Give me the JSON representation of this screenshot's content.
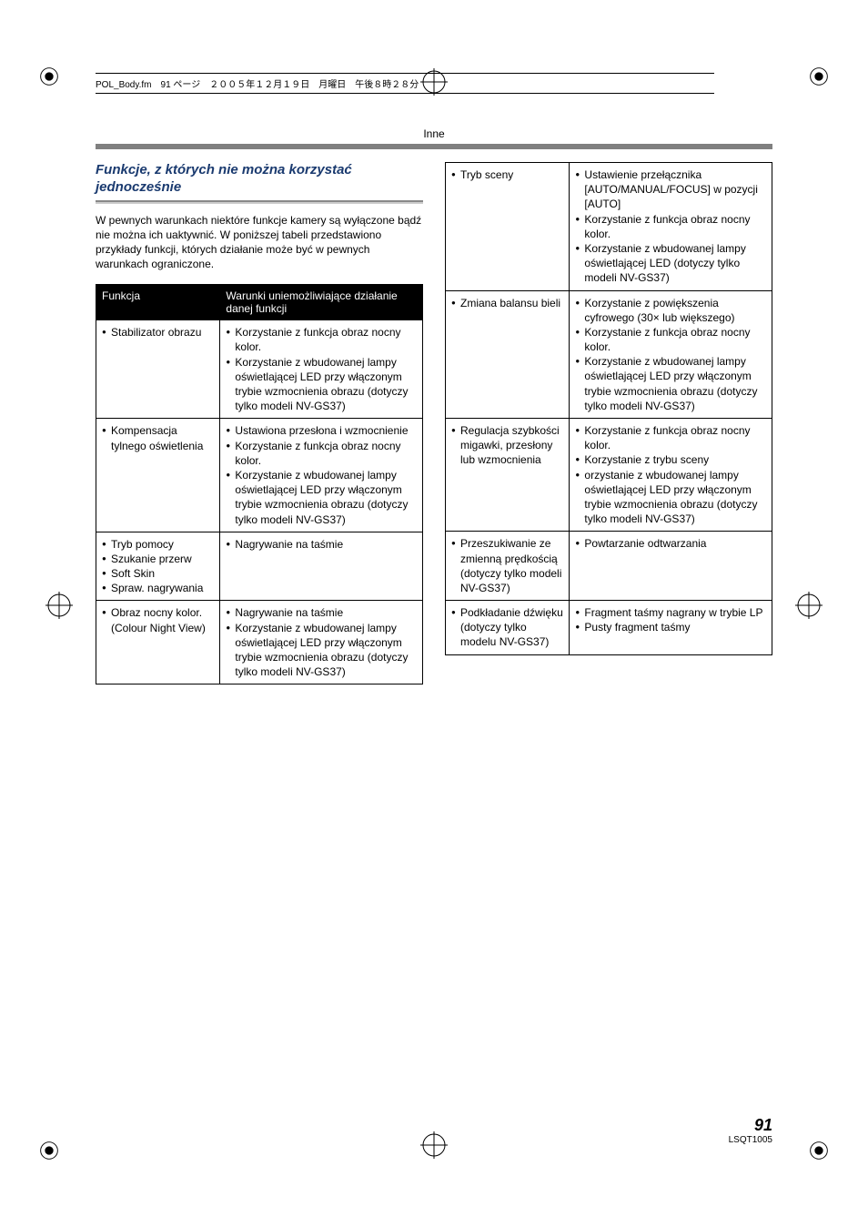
{
  "header_text": "POL_Body.fm　91 ページ　２００５年１２月１９日　月曜日　午後８時２８分",
  "section_label": "Inne",
  "title": "Funkcje, z których nie można korzystać jednocześnie",
  "intro": "W pewnych warunkach niektóre funkcje kamery są wyłączone bądź nie można ich uaktywnić. W poniższej tabeli przedstawiono przykłady funkcji, których działanie może być w pewnych warunkach ograniczone.",
  "table_headers": {
    "func": "Funkcja",
    "cond": "Warunki uniemożliwiające działanie danej funkcji"
  },
  "left_rows": [
    {
      "func": [
        "Stabilizator obrazu"
      ],
      "cond": [
        "Korzystanie z funkcja obraz nocny kolor.",
        "Korzystanie z wbudowanej lampy oświetlającej LED przy włączonym trybie wzmocnienia obrazu (dotyczy tylko modeli NV-GS37)"
      ]
    },
    {
      "func": [
        "Kompensacja tylnego oświetlenia"
      ],
      "cond": [
        "Ustawiona przesłona i wzmocnienie",
        "Korzystanie z funkcja obraz nocny kolor.",
        "Korzystanie z wbudowanej lampy oświetlającej LED przy włączonym trybie wzmocnienia obrazu (dotyczy tylko modeli NV-GS37)"
      ]
    },
    {
      "func": [
        "Tryb pomocy",
        "Szukanie przerw",
        "Soft Skin",
        "Spraw. nagrywania"
      ],
      "cond": [
        "Nagrywanie na taśmie"
      ]
    },
    {
      "func": [
        "Obraz nocny kolor. (Colour Night View)"
      ],
      "cond": [
        "Nagrywanie na taśmie",
        "Korzystanie z wbudowanej lampy oświetlającej LED przy włączonym trybie wzmocnienia obrazu (dotyczy tylko modeli NV-GS37)"
      ]
    }
  ],
  "right_rows": [
    {
      "func": [
        "Tryb sceny"
      ],
      "cond": [
        "Ustawienie przełącznika [AUTO/MANUAL/FOCUS] w pozycji [AUTO]",
        "Korzystanie z funkcja obraz nocny kolor.",
        "Korzystanie z wbudowanej lampy oświetlającej LED (dotyczy tylko modeli NV-GS37)"
      ]
    },
    {
      "func": [
        "Zmiana balansu bieli"
      ],
      "cond": [
        "Korzystanie z powiększenia cyfrowego (30× lub większego)",
        "Korzystanie z funkcja obraz nocny kolor.",
        "Korzystanie z wbudowanej lampy oświetlającej LED przy włączonym trybie wzmocnienia obrazu (dotyczy tylko modeli NV-GS37)"
      ]
    },
    {
      "func": [
        "Regulacja szybkości migawki, przesłony lub wzmocnienia"
      ],
      "cond": [
        "Korzystanie z funkcja obraz nocny kolor.",
        "Korzystanie z trybu sceny",
        "orzystanie z wbudowanej lampy oświetlającej LED przy włączonym trybie wzmocnienia obrazu (dotyczy tylko modeli NV-GS37)"
      ]
    },
    {
      "func": [
        "Przeszukiwanie ze zmienną prędkością (dotyczy tylko modeli NV-GS37)"
      ],
      "cond": [
        "Powtarzanie odtwarzania"
      ]
    },
    {
      "func": [
        "Podkładanie dźwięku (dotyczy tylko modelu NV-GS37)"
      ],
      "cond": [
        "Fragment taśmy nagrany w trybie LP",
        "Pusty fragment taśmy"
      ]
    }
  ],
  "page_number": "91",
  "doc_code": "LSQT1005"
}
